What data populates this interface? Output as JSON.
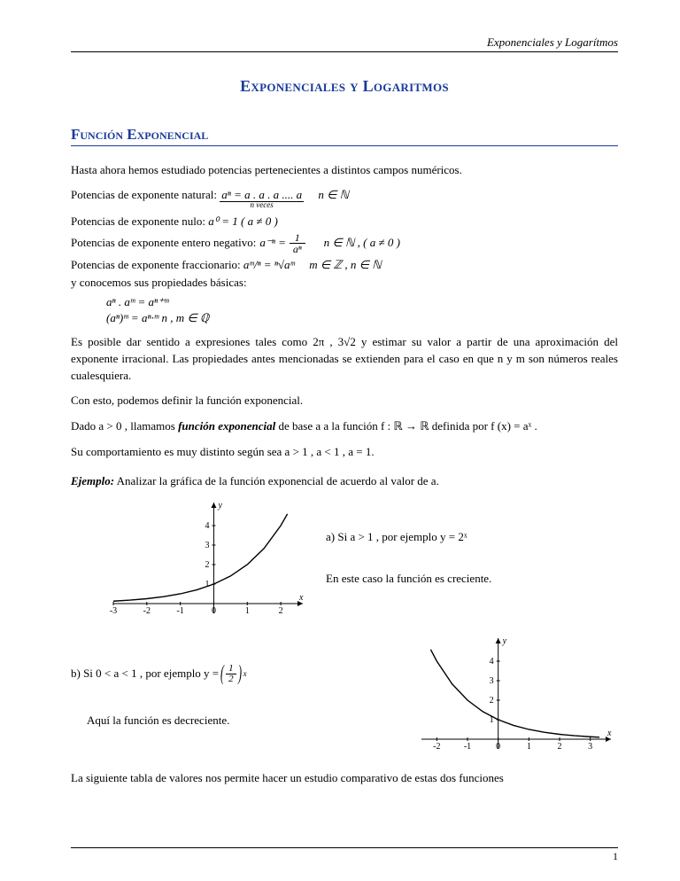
{
  "header": {
    "running_title": "Exponenciales y Logarítmos"
  },
  "title": "Exponenciales y Logaritmos",
  "section": "Función Exponencial",
  "intro": "Hasta ahora hemos estudiado potencias pertenecientes a distintos campos numéricos.",
  "rules": {
    "r1_label": "Potencias de exponente natural:",
    "r1_math": "aⁿ = a . a . a .... a",
    "r1_under": "n  veces",
    "r1_tail": "n ∈ ℕ",
    "r2_label": "Potencias de exponente nulo:",
    "r2_math": "a⁰ = 1    ( a ≠ 0 )",
    "r3_label": "Potencias de exponente entero negativo:",
    "r3_math_a": "a⁻ⁿ = ",
    "r3_frac_num": "1",
    "r3_frac_den": "aⁿ",
    "r3_tail": "n ∈ ℕ  ,  ( a ≠ 0 )",
    "r4_label": "Potencias de exponente fraccionario:",
    "r4_math": "aᵐ/ⁿ = ⁿ√aᵐ",
    "r4_tail": "m ∈ ℤ   ,   n ∈ ℕ",
    "r5": "y conocemos sus propiedades básicas:",
    "p1": "aⁿ . aᵐ = aⁿ⁺ᵐ",
    "p2": "(aⁿ)ᵐ  = aⁿ·ᵐ        n , m ∈ ℚ"
  },
  "para2": "Es posible dar sentido a expresiones tales como   2π  ,   3√2    y estimar su valor a partir de una aproximación del exponente irracional. Las propiedades antes mencionadas se extienden para el caso en que  n  y  m  son números reales cualesquiera.",
  "para3": "Con esto, podemos definir la función exponencial.",
  "para4_a": "Dado  a > 0  , llamamos ",
  "para4_b": "función exponencial",
  "para4_c": " de base  a  a la función    f : ℝ → ℝ   definida por    f (x) = aˣ .",
  "para5": "Su comportamiento es muy distinto según sea   a > 1 ,   a < 1  ,  a = 1.",
  "ejemplo_label": "Ejemplo:",
  "ejemplo_text": " Analizar la gráfica de la función exponencial de acuerdo al valor de  a.",
  "caseA_title": "a)  Si  a > 1 , por ejemplo    y = 2ˣ",
  "caseA_desc": "En este caso la función es creciente.",
  "caseB_title_a": "b)  Si  0 < a < 1 , por ejemplo    y = ",
  "caseB_frac_num": "1",
  "caseB_frac_den": "2",
  "caseB_exp": "x",
  "caseB_desc": "Aquí la función es decreciente.",
  "closing": "La siguiente tabla de valores nos permite hacer un estudio comparativo de estas dos funciones",
  "page_num": "1",
  "chartA": {
    "type": "line",
    "xlim": [
      -3,
      2.5
    ],
    "ylim": [
      -0.5,
      5
    ],
    "xticks": [
      -3,
      -2,
      -1,
      0,
      1,
      2
    ],
    "yticks": [
      1,
      2,
      3,
      4
    ],
    "axis_color": "#000000",
    "line_color": "#000000",
    "bg": "#ffffff",
    "points": [
      [
        -3,
        0.125
      ],
      [
        -2.5,
        0.177
      ],
      [
        -2,
        0.25
      ],
      [
        -1.5,
        0.354
      ],
      [
        -1,
        0.5
      ],
      [
        -0.5,
        0.707
      ],
      [
        0,
        1
      ],
      [
        0.5,
        1.414
      ],
      [
        1,
        2
      ],
      [
        1.5,
        2.828
      ],
      [
        2,
        4
      ],
      [
        2.2,
        4.6
      ]
    ],
    "xlabel": "x",
    "ylabel": "y"
  },
  "chartB": {
    "type": "line",
    "xlim": [
      -2.5,
      3.5
    ],
    "ylim": [
      -0.5,
      5
    ],
    "xticks": [
      -2,
      -1,
      0,
      1,
      2,
      3
    ],
    "yticks": [
      1,
      2,
      3,
      4
    ],
    "axis_color": "#000000",
    "line_color": "#000000",
    "bg": "#ffffff",
    "points": [
      [
        -2.2,
        4.6
      ],
      [
        -2,
        4
      ],
      [
        -1.5,
        2.828
      ],
      [
        -1,
        2
      ],
      [
        -0.5,
        1.414
      ],
      [
        0,
        1
      ],
      [
        0.5,
        0.707
      ],
      [
        1,
        0.5
      ],
      [
        1.5,
        0.354
      ],
      [
        2,
        0.25
      ],
      [
        2.5,
        0.177
      ],
      [
        3,
        0.125
      ],
      [
        3.3,
        0.1
      ]
    ],
    "xlabel": "x",
    "ylabel": "y"
  }
}
